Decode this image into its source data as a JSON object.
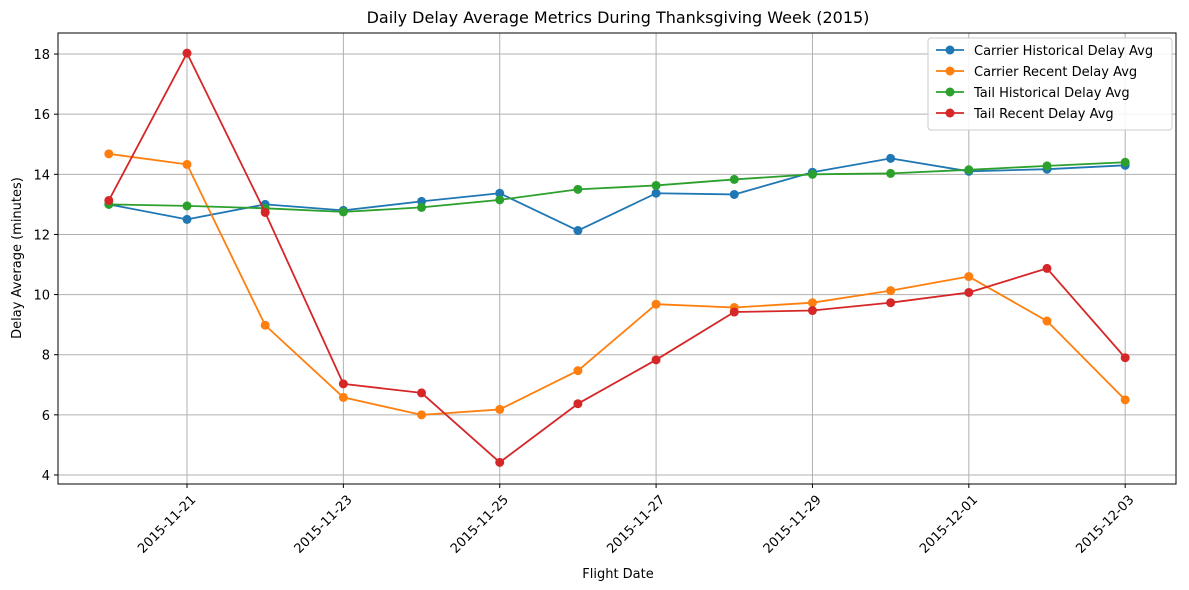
{
  "chart_data": {
    "type": "line",
    "title": "Daily Delay Average Metrics During Thanksgiving Week (2015)",
    "xlabel": "Flight Date",
    "ylabel": "Delay Average (minutes)",
    "x": [
      "2015-11-20",
      "2015-11-21",
      "2015-11-22",
      "2015-11-23",
      "2015-11-24",
      "2015-11-25",
      "2015-11-26",
      "2015-11-27",
      "2015-11-28",
      "2015-11-29",
      "2015-11-30",
      "2015-12-01",
      "2015-12-02",
      "2015-12-03"
    ],
    "x_ticks": [
      "2015-11-21",
      "2015-11-23",
      "2015-11-25",
      "2015-11-27",
      "2015-11-29",
      "2015-12-01",
      "2015-12-03"
    ],
    "y_ticks": [
      4,
      6,
      8,
      10,
      12,
      14,
      16,
      18
    ],
    "ylim": [
      3.7,
      18.7
    ],
    "grid": true,
    "legend_position": "top-right",
    "series": [
      {
        "name": "Carrier Historical Delay Avg",
        "color": "#1f77b4",
        "values": [
          13.0,
          12.5,
          13.0,
          12.8,
          13.1,
          13.37,
          12.13,
          13.37,
          13.33,
          14.07,
          14.53,
          14.1,
          14.17,
          14.3
        ]
      },
      {
        "name": "Carrier Recent Delay Avg",
        "color": "#ff7f0e",
        "values": [
          14.68,
          14.33,
          8.98,
          6.58,
          6.0,
          6.18,
          7.47,
          9.68,
          9.57,
          9.73,
          10.13,
          10.6,
          9.12,
          6.5
        ]
      },
      {
        "name": "Tail Historical Delay Avg",
        "color": "#2ca02c",
        "values": [
          13.0,
          12.95,
          12.87,
          12.75,
          12.9,
          13.15,
          13.5,
          13.63,
          13.83,
          14.0,
          14.03,
          14.15,
          14.28,
          14.4
        ]
      },
      {
        "name": "Tail Recent Delay Avg",
        "color": "#d62728",
        "values": [
          13.13,
          18.03,
          12.73,
          7.03,
          6.73,
          4.42,
          6.37,
          7.83,
          9.42,
          9.47,
          9.73,
          10.07,
          10.87,
          7.9
        ]
      }
    ]
  }
}
